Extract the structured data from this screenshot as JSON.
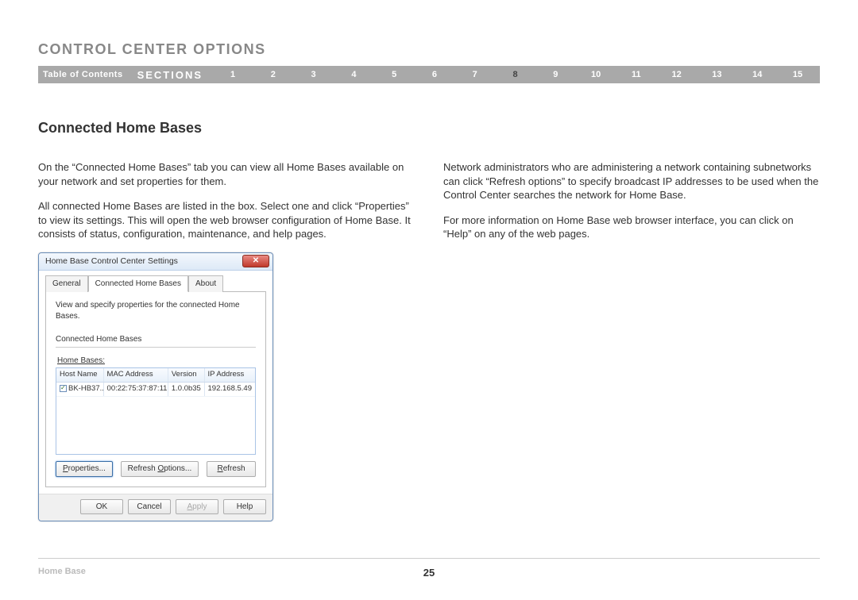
{
  "header": {
    "title": "CONTROL CENTER OPTIONS"
  },
  "nav": {
    "toc": "Table of Contents",
    "sections_label": "SECTIONS",
    "sections": [
      "1",
      "2",
      "3",
      "4",
      "5",
      "6",
      "7",
      "8",
      "9",
      "10",
      "11",
      "12",
      "13",
      "14",
      "15"
    ],
    "active_index": 7
  },
  "subtitle": "Connected Home Bases",
  "left_column": {
    "p1": "On the “Connected Home Bases” tab you can view all Home Bases available on your network and set properties for them.",
    "p2": "All connected Home Bases are listed in the box. Select one and click “Properties” to view its settings. This will open the web browser configuration of Home Base. It consists of status, configuration, maintenance, and help pages."
  },
  "right_column": {
    "p1": "Network administrators who are administering a network containing subnetworks can click “Refresh options” to specify broadcast IP addresses to be used when the Control Center searches the network for Home Base.",
    "p2": "For more information on Home Base web browser interface, you can click on “Help” on any of the web pages."
  },
  "dialog": {
    "title": "Home Base Control Center Settings",
    "tabs": [
      "General",
      "Connected Home Bases",
      "About"
    ],
    "active_tab": 1,
    "description": "View and specify properties for the connected Home Bases.",
    "group_label": "Connected Home Bases",
    "grid_caption": "Home Bases:",
    "columns": [
      "Host Name",
      "MAC Address",
      "Version",
      "IP Address"
    ],
    "row": {
      "host": "BK-HB37...",
      "mac": "00:22:75:37:87:11",
      "ver": "1.0.0b35",
      "ip": "192.168.5.49"
    },
    "btn_properties": "Properties...",
    "btn_refresh_options": "Refresh Options...",
    "btn_refresh": "Refresh",
    "btn_ok": "OK",
    "btn_cancel": "Cancel",
    "btn_apply": "Apply",
    "btn_help": "Help"
  },
  "footer": {
    "left": "Home Base",
    "page": "25"
  }
}
